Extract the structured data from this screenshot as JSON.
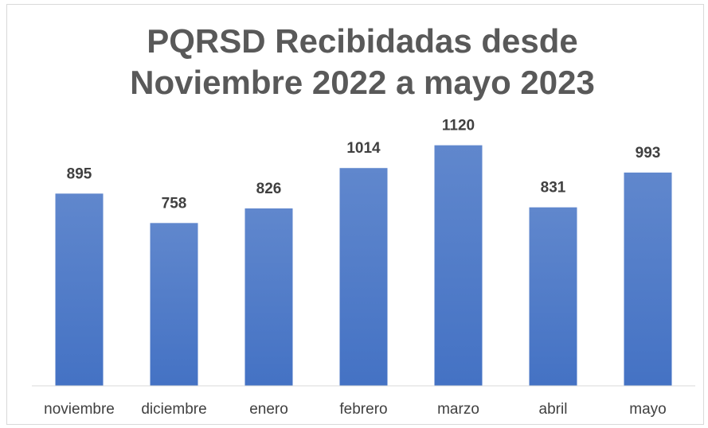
{
  "chart_data": {
    "type": "bar",
    "title": "PQRSD Recibidadas desde Noviembre 2022 a mayo 2023",
    "categories": [
      "noviembre",
      "diciembre",
      "enero",
      "febrero",
      "marzo",
      "abril",
      "mayo"
    ],
    "values": [
      895,
      758,
      826,
      1014,
      1120,
      831,
      993
    ],
    "color": "#4472c4",
    "ylim": [
      0,
      1200
    ],
    "grid": false
  }
}
